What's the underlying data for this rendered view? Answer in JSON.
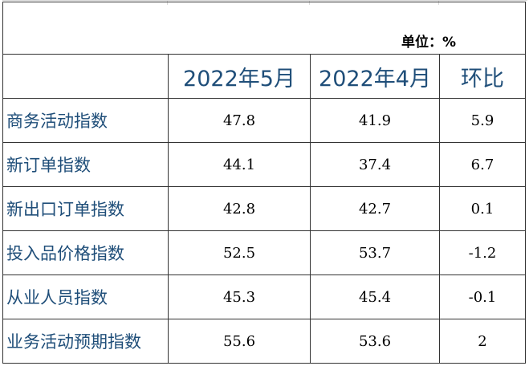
{
  "unit_label": "单位：%",
  "table": {
    "headers": [
      "",
      "2022年5月",
      "2022年4月",
      "环比"
    ],
    "rows": [
      {
        "name": "商务活动指数",
        "may": "47.8",
        "apr": "41.9",
        "mom": "5.9"
      },
      {
        "name": "新订单指数",
        "may": "44.1",
        "apr": "37.4",
        "mom": "6.7"
      },
      {
        "name": "新出口订单指数",
        "may": "42.8",
        "apr": "42.7",
        "mom": "0.1"
      },
      {
        "name": "投入品价格指数",
        "may": "52.5",
        "apr": "53.7",
        "mom": "-1.2"
      },
      {
        "name": "从业人员指数",
        "may": "45.3",
        "apr": "45.4",
        "mom": "-0.1"
      },
      {
        "name": "业务活动预期指数",
        "may": "55.6",
        "apr": "53.6",
        "mom": "2"
      }
    ]
  },
  "colors": {
    "header_text": "#1f4e79",
    "label_text": "#1f4e79",
    "value_text": "#000000",
    "border": "#333333"
  }
}
